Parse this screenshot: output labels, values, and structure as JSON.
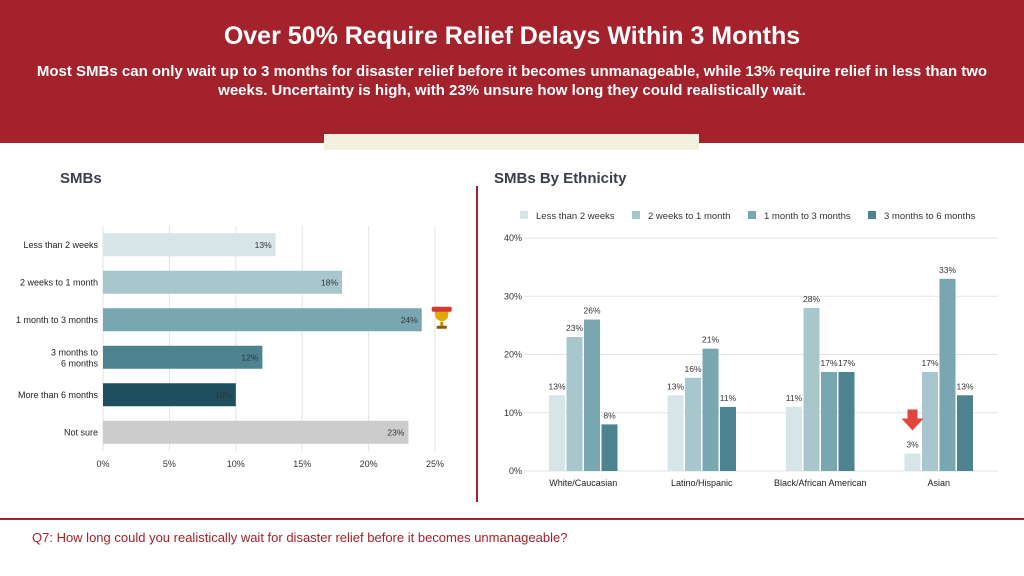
{
  "header": {
    "title": "Over 50% Require Relief Delays Within 3 Months",
    "subtitle": "Most SMBs can only wait up to 3 months for disaster relief before it becomes unmanageable, while 13% require relief in less than two weeks. Uncertainty is high, with 23% unsure how long they could realistically wait."
  },
  "left_panel": {
    "title": "SMBs"
  },
  "right_panel": {
    "title": "SMBs By Ethnicity"
  },
  "footer": {
    "question": "Q7: How long could you realistically wait for disaster relief before it becomes unmanageable?"
  },
  "icons": {
    "highlight_marker": "trophy-icon",
    "lowest_marker": "down-arrow-icon"
  },
  "colors": {
    "header_bg": "#a3222b",
    "accent_tan": "#f4f0df",
    "grid": "#e3e3e3",
    "series": [
      "#d7e5e8",
      "#a7c7cd",
      "#78a6b1",
      "#4c838f",
      "#1d4f5e",
      "#cccccc"
    ]
  },
  "chart_data": [
    {
      "type": "bar",
      "orientation": "horizontal",
      "title": "SMBs",
      "categories": [
        "Less than 2 weeks",
        "2 weeks to 1 month",
        "1 month to 3 months",
        "3 months to 6 months",
        "More than 6 months",
        "Not sure"
      ],
      "values": [
        13,
        18,
        24,
        12,
        10,
        23
      ],
      "value_labels": [
        "13%",
        "18%",
        "24%",
        "12%",
        "10%",
        "23%"
      ],
      "bar_colors": [
        "#d7e5e8",
        "#a7c7cd",
        "#78a6b1",
        "#4c838f",
        "#1d4f5e",
        "#cccccc"
      ],
      "xlim": [
        0,
        25
      ],
      "xticks": [
        "0%",
        "5%",
        "10%",
        "15%",
        "20%",
        "25%"
      ],
      "grid": true,
      "highlight_index": 2
    },
    {
      "type": "bar",
      "orientation": "vertical",
      "title": "SMBs By Ethnicity",
      "categories": [
        "White/Caucasian",
        "Latino/Hispanic",
        "Black/African American",
        "Asian"
      ],
      "series": [
        {
          "name": "Less than 2 weeks",
          "color": "#d7e5e8",
          "values": [
            13,
            13,
            11,
            3
          ],
          "labels": [
            "13%",
            "13%",
            "11%",
            "3%"
          ]
        },
        {
          "name": "2 weeks to 1 month",
          "color": "#a7c7cd",
          "values": [
            23,
            16,
            28,
            17
          ],
          "labels": [
            "23%",
            "16%",
            "28%",
            "17%"
          ]
        },
        {
          "name": "1 month to 3 months",
          "color": "#78a6b1",
          "values": [
            26,
            21,
            17,
            33
          ],
          "labels": [
            "26%",
            "21%",
            "17%",
            "33%"
          ]
        },
        {
          "name": "3 months to 6 months",
          "color": "#4c838f",
          "values": [
            8,
            11,
            17,
            13
          ],
          "labels": [
            "8%",
            "11%",
            "17%",
            "13%"
          ]
        }
      ],
      "ylim": [
        0,
        40
      ],
      "yticks": [
        "0%",
        "10%",
        "20%",
        "30%",
        "40%"
      ],
      "grid": true,
      "legend": "top"
    }
  ]
}
